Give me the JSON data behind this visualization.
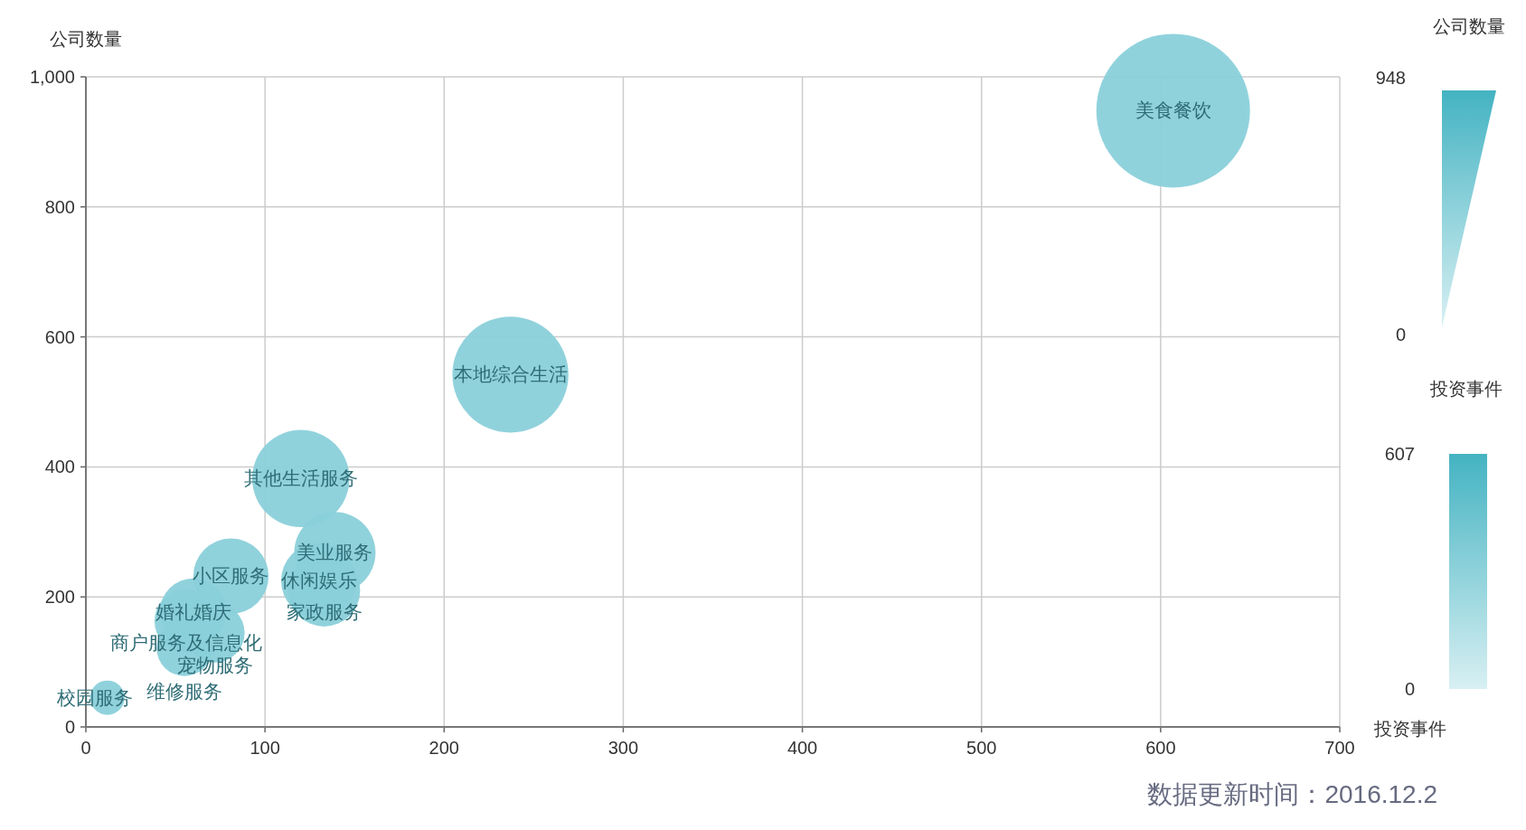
{
  "chart_data": {
    "type": "bubble",
    "ylabel": "公司数量",
    "series": [
      {
        "name": "美食餐饮",
        "color": "#8ad0da",
        "x": [
          607
        ],
        "values": [
          948
        ],
        "sizes": [
          1
        ]
      },
      {
        "name": "本地综合生活",
        "color": "#8ad0da",
        "x": [
          237
        ],
        "values": [
          542
        ],
        "sizes": [
          0.57
        ]
      },
      {
        "name": "其他生活服务",
        "color": "#8ad0da",
        "x": [
          120
        ],
        "values": [
          382
        ],
        "sizes": [
          0.4
        ]
      },
      {
        "name": "美业服务",
        "color": "#8ad0da",
        "x": [
          139
        ],
        "values": [
          268
        ],
        "sizes": [
          0.28
        ]
      },
      {
        "name": "休闲娱乐",
        "color": "#8ad0da",
        "x": [
          130
        ],
        "values": [
          225
        ],
        "sizes": [
          0.24
        ]
      },
      {
        "name": "家政服务",
        "color": "#8ad0da",
        "x": [
          133
        ],
        "values": [
          210
        ],
        "sizes": [
          0.22
        ]
      },
      {
        "name": "小区服务",
        "color": "#8ad0da",
        "x": [
          81
        ],
        "values": [
          232
        ],
        "sizes": [
          0.24
        ]
      },
      {
        "name": "婚礼婚庆",
        "color": "#8ad0da",
        "x": [
          60
        ],
        "values": [
          177
        ],
        "sizes": [
          0.19
        ]
      },
      {
        "name": "商户服务及信息化",
        "color": "#8ad0da",
        "x": [
          56
        ],
        "values": [
          163
        ],
        "sizes": [
          0.17
        ]
      },
      {
        "name": "宠物服务",
        "color": "#8ad0da",
        "x": [
          72
        ],
        "values": [
          145
        ],
        "sizes": [
          0.15
        ]
      },
      {
        "name": "维修服务",
        "color": "#8ad0da",
        "x": [
          55
        ],
        "values": [
          121
        ],
        "sizes": [
          0.13
        ]
      },
      {
        "name": "校园服务",
        "color": "#8ad0da",
        "x": [
          12
        ],
        "values": [
          45
        ],
        "sizes": [
          0.05
        ]
      }
    ],
    "clim": [
      0,
      607
    ],
    "cticks": [
      0,
      607
    ],
    "clabel": "投资事件",
    "xlim": [
      0,
      700
    ],
    "xticks": [
      0,
      100,
      200,
      300,
      400,
      500,
      600,
      700
    ],
    "ylim": [
      0,
      1000
    ],
    "yticks": [
      0,
      200,
      400,
      600,
      800,
      {
        "value": 1000,
        "label": "1,000"
      }
    ],
    "grid": true,
    "annotations": [
      "公司数量",
      "948",
      "0",
      "投资事件",
      "数据更新时间：2016.12.2"
    ]
  }
}
